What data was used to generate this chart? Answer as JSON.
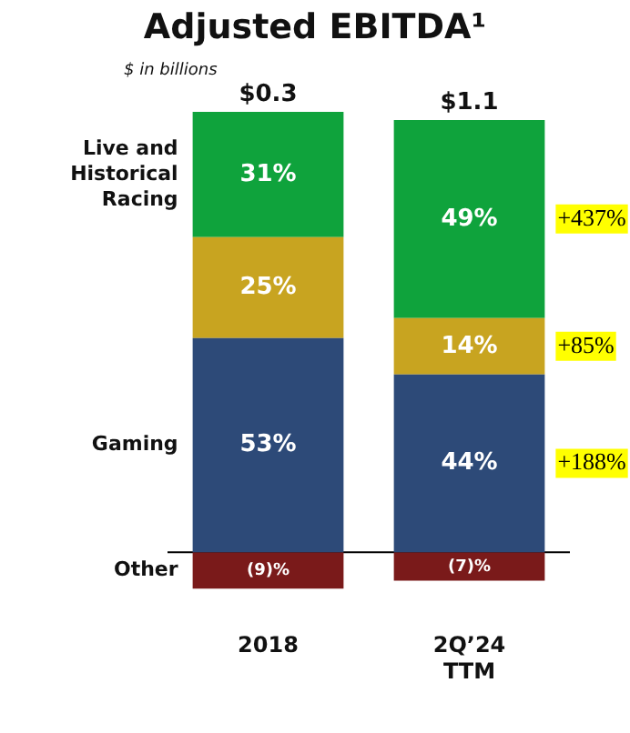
{
  "chart_data": {
    "type": "bar",
    "title": "Adjusted EBITDA¹",
    "subtitle": "$ in billions",
    "stacked": true,
    "legend": false,
    "grid": false,
    "tick_labels": "x",
    "categories": [
      "2018",
      "2Q’24 TTM"
    ],
    "series": [
      {
        "name": "Gaming",
        "color": "#2d4a78",
        "values": [
          53,
          44
        ],
        "value_labels": [
          "53%",
          "44%"
        ]
      },
      {
        "color": "#c8a420",
        "values": [
          25,
          14
        ],
        "value_labels": [
          "25%",
          "14%"
        ]
      },
      {
        "name": "Live and Historical Racing",
        "color": "#0fa33c",
        "values": [
          31,
          49
        ],
        "value_labels": [
          "31%",
          "49%"
        ]
      },
      {
        "name": "Other",
        "color": "#7a1a1a",
        "values": [
          -9,
          -7
        ],
        "value_labels": [
          "(9)%",
          "(7)%"
        ]
      }
    ],
    "annotations": [
      "$0.3",
      "$1.1",
      "+437%",
      "+85%",
      "+188%"
    ]
  }
}
